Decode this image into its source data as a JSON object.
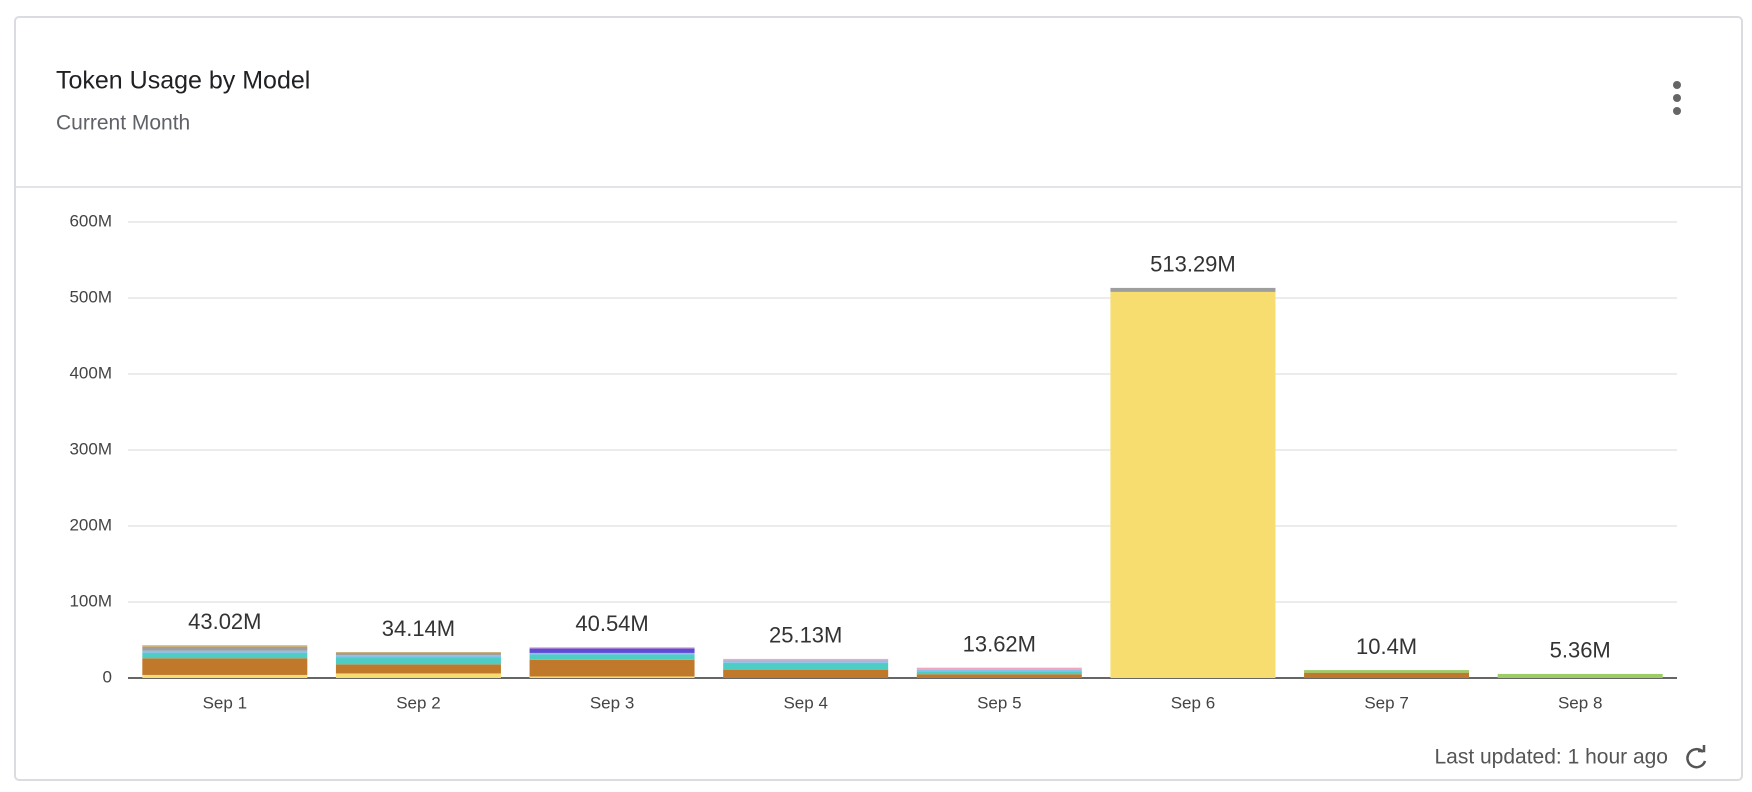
{
  "chart_data": {
    "type": "stacked-bar",
    "title": "Token Usage by Model",
    "subtitle": "Current Month",
    "footer": "Last updated: 1 hour ago",
    "categories": [
      "Sep 1",
      "Sep 2",
      "Sep 3",
      "Sep 4",
      "Sep 5",
      "Sep 6",
      "Sep 7",
      "Sep 8"
    ],
    "series": [
      {
        "color": "#f7dc6f",
        "values": [
          4000000,
          6000000,
          2000000,
          0,
          0,
          508000000,
          0,
          0
        ]
      },
      {
        "color": "#c0792b",
        "values": [
          22000000,
          12000000,
          22000000,
          11000000,
          5000000,
          0,
          7000000,
          0
        ]
      },
      {
        "color": "#4ecdc4",
        "values": [
          7000000,
          9000000,
          7000000,
          9000000,
          4000000,
          0,
          0,
          0
        ]
      },
      {
        "color": "#85c1e9",
        "values": [
          3000000,
          3000000,
          2000000,
          3000000,
          2500000,
          0,
          0,
          0
        ]
      },
      {
        "color": "#9e9e9e",
        "values": [
          5000000,
          3000000,
          0,
          0,
          0,
          5290000,
          0,
          0
        ]
      },
      {
        "color": "#5b4bd5",
        "values": [
          0,
          0,
          6000000,
          0,
          0,
          0,
          0,
          0
        ]
      },
      {
        "color": "#f1a7c0",
        "values": [
          0,
          0,
          1540000,
          2130000,
          2120000,
          0,
          0,
          0
        ]
      },
      {
        "color": "#c9a96b",
        "values": [
          2020000,
          1140000,
          0,
          0,
          0,
          0,
          0,
          0
        ]
      },
      {
        "color": "#9ccc65",
        "values": [
          0,
          0,
          0,
          0,
          0,
          0,
          3400000,
          5360000
        ]
      }
    ],
    "totals": [
      43020000,
      34140000,
      40540000,
      25130000,
      13620000,
      513290000,
      10400000,
      5360000
    ],
    "total_labels": [
      "43.02M",
      "34.14M",
      "40.54M",
      "25.13M",
      "13.62M",
      "513.29M",
      "10.4M",
      "5.36M"
    ],
    "ylim": [
      0,
      600000000
    ],
    "yticks": [
      0,
      {
        "value": 100000000,
        "label": "100M"
      },
      {
        "value": 200000000,
        "label": "200M"
      },
      {
        "value": 300000000,
        "label": "300M"
      },
      {
        "value": 400000000,
        "label": "400M"
      },
      {
        "value": 500000000,
        "label": "500M"
      },
      {
        "value": 600000000,
        "label": "600M"
      }
    ],
    "grid": true
  }
}
